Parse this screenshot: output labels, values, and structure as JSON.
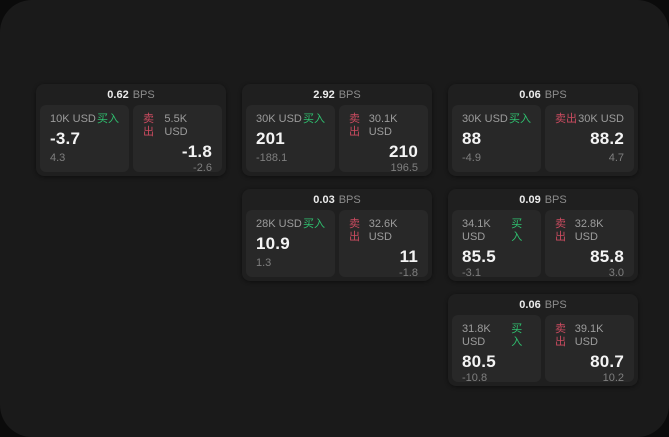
{
  "labels": {
    "bps_suffix": "BPS",
    "buy": "买入",
    "sell": "卖出"
  },
  "colors": {
    "buy_green": "#2fc06f",
    "sell_red": "#cb4b60",
    "panel_background": "#1a1a1a",
    "card_background": "#1f1f1f",
    "tile_background": "#282828",
    "value_text": "#f4f4f4",
    "muted_text": "#9c9c9c"
  },
  "cards": [
    {
      "bps": "0.62",
      "buy": {
        "amount": "10K USD",
        "value": "-3.7",
        "change": "4.3"
      },
      "sell": {
        "amount": "5.5K USD",
        "value": "-1.8",
        "change": "-2.6"
      }
    },
    {
      "bps": "2.92",
      "buy": {
        "amount": "30K USD",
        "value": "201",
        "change": "-188.1"
      },
      "sell": {
        "amount": "30.1K USD",
        "value": "210",
        "change": "196.5"
      }
    },
    {
      "bps": "0.06",
      "buy": {
        "amount": "30K USD",
        "value": "88",
        "change": "-4.9"
      },
      "sell": {
        "amount": "30K USD",
        "value": "88.2",
        "change": "4.7"
      }
    },
    {
      "bps": "0.03",
      "buy": {
        "amount": "28K USD",
        "value": "10.9",
        "change": "1.3"
      },
      "sell": {
        "amount": "32.6K USD",
        "value": "11",
        "change": "-1.8"
      }
    },
    {
      "bps": "0.09",
      "buy": {
        "amount": "34.1K USD",
        "value": "85.5",
        "change": "-3.1"
      },
      "sell": {
        "amount": "32.8K USD",
        "value": "85.8",
        "change": "3.0"
      }
    },
    {
      "bps": "0.06",
      "buy": {
        "amount": "31.8K USD",
        "value": "80.5",
        "change": "-10.8"
      },
      "sell": {
        "amount": "39.1K USD",
        "value": "80.7",
        "change": "10.2"
      }
    }
  ]
}
